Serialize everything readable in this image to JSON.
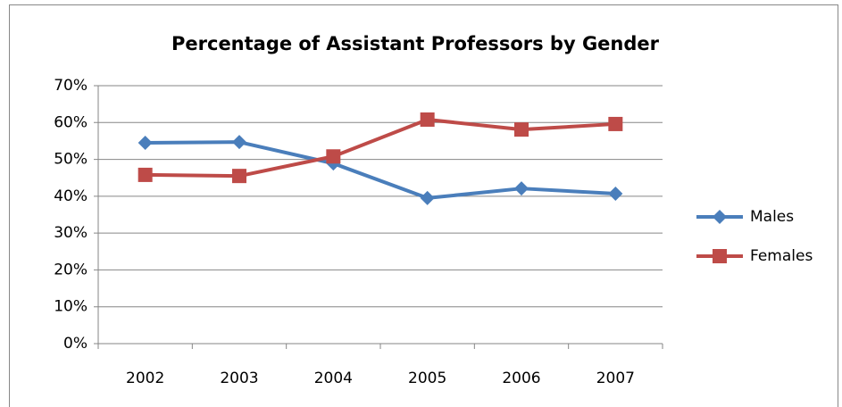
{
  "chart_data": {
    "type": "line",
    "title": "Percentage of Assistant Professors by Gender",
    "categories": [
      "2002",
      "2003",
      "2004",
      "2005",
      "2006",
      "2007"
    ],
    "series": [
      {
        "name": "Males",
        "color": "#4a7ebb",
        "marker": "diamond",
        "values": [
          54.5,
          54.7,
          48.9,
          39.5,
          42.1,
          40.7
        ]
      },
      {
        "name": "Females",
        "color": "#be4b48",
        "marker": "square",
        "values": [
          45.8,
          45.5,
          50.8,
          60.8,
          58.1,
          59.6
        ]
      }
    ],
    "ylim": [
      0,
      70
    ],
    "yticks": [
      {
        "value": 0,
        "label": "0%"
      },
      {
        "value": 10,
        "label": "10%"
      },
      {
        "value": 20,
        "label": "20%"
      },
      {
        "value": 30,
        "label": "30%"
      },
      {
        "value": 40,
        "label": "40%"
      },
      {
        "value": 50,
        "label": "50%"
      },
      {
        "value": 60,
        "label": "60%"
      },
      {
        "value": 70,
        "label": "70%"
      }
    ],
    "grid": true,
    "legend": "right"
  }
}
